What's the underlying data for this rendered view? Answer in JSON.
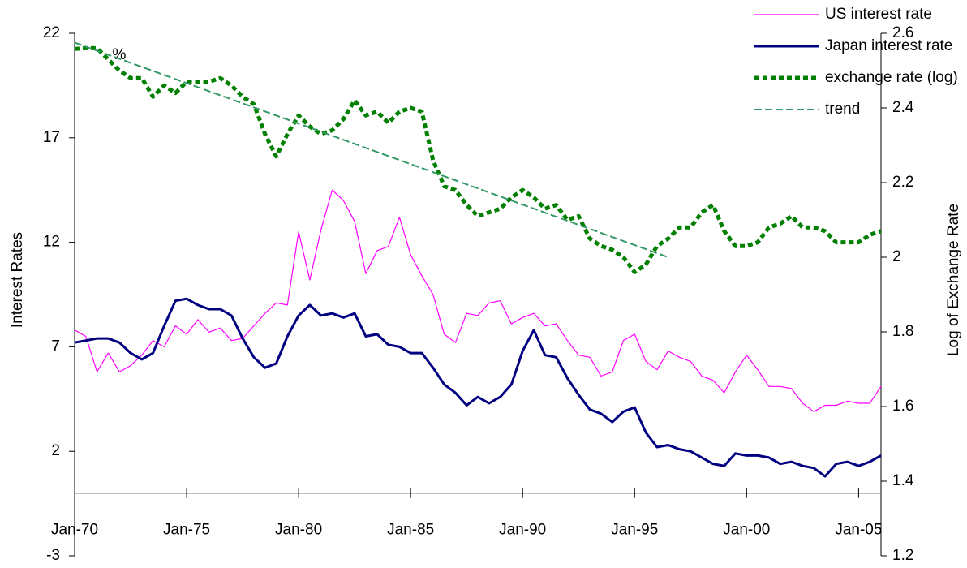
{
  "chart_data": {
    "type": "line",
    "annotation": "%",
    "y_label": "Interest Rates",
    "y2_label": "Log of Exchange Rate",
    "xlim": [
      1970,
      2006
    ],
    "xticks": [
      {
        "value": 1970,
        "label": "Jan-70"
      },
      {
        "value": 1975,
        "label": "Jan-75"
      },
      {
        "value": 1980,
        "label": "Jan-80"
      },
      {
        "value": 1985,
        "label": "Jan-85"
      },
      {
        "value": 1990,
        "label": "Jan-90"
      },
      {
        "value": 1995,
        "label": "Jan-95"
      },
      {
        "value": 2000,
        "label": "Jan-00"
      },
      {
        "value": 2005,
        "label": "Jan-05"
      }
    ],
    "ylim": [
      -3,
      22
    ],
    "yticks": [
      -3,
      2,
      7,
      12,
      17,
      22
    ],
    "y2lim": [
      1.2,
      2.6
    ],
    "y2ticks": [
      1.2,
      1.4,
      1.6,
      1.8,
      2,
      2.2,
      2.4,
      2.6
    ],
    "legend": "top-right",
    "x": [
      1970,
      1970.5,
      1971,
      1971.5,
      1972,
      1972.5,
      1973,
      1973.5,
      1974,
      1974.5,
      1975,
      1975.5,
      1976,
      1976.5,
      1977,
      1977.5,
      1978,
      1978.5,
      1979,
      1979.5,
      1980,
      1980.5,
      1981,
      1981.5,
      1982,
      1982.5,
      1983,
      1983.5,
      1984,
      1984.5,
      1985,
      1985.5,
      1986,
      1986.5,
      1987,
      1987.5,
      1988,
      1988.5,
      1989,
      1989.5,
      1990,
      1990.5,
      1991,
      1991.5,
      1992,
      1992.5,
      1993,
      1993.5,
      1994,
      1994.5,
      1995,
      1995.5,
      1996,
      1996.5,
      1997,
      1997.5,
      1998,
      1998.5,
      1999,
      1999.5,
      2000,
      2000.5,
      2001,
      2001.5,
      2002,
      2002.5,
      2003,
      2003.5,
      2004,
      2004.5,
      2005,
      2005.5,
      2006
    ],
    "series": [
      {
        "name": "US interest rate",
        "color": "#ff00ff",
        "width": 1.2,
        "values": [
          7.8,
          7.5,
          5.8,
          6.7,
          5.8,
          6.1,
          6.6,
          7.3,
          7.0,
          8.0,
          7.6,
          8.3,
          7.7,
          7.9,
          7.3,
          7.4,
          8.0,
          8.6,
          9.1,
          9.0,
          12.5,
          10.2,
          12.6,
          14.5,
          14.0,
          13.0,
          10.5,
          11.6,
          11.8,
          13.2,
          11.4,
          10.4,
          9.5,
          7.6,
          7.2,
          8.6,
          8.5,
          9.1,
          9.2,
          8.1,
          8.4,
          8.6,
          8.0,
          8.1,
          7.3,
          6.6,
          6.5,
          5.6,
          5.8,
          7.3,
          7.6,
          6.3,
          5.9,
          6.8,
          6.5,
          6.3,
          5.6,
          5.4,
          4.8,
          5.8,
          6.6,
          5.9,
          5.1,
          5.1,
          5.0,
          4.3,
          3.9,
          4.2,
          4.2,
          4.4,
          4.3,
          4.3,
          5.1
        ]
      },
      {
        "name": "Japan interest rate",
        "color": "#000080",
        "width": 3,
        "values": [
          7.2,
          7.3,
          7.4,
          7.4,
          7.2,
          6.7,
          6.4,
          6.7,
          8.0,
          9.2,
          9.3,
          9.0,
          8.8,
          8.8,
          8.5,
          7.4,
          6.5,
          6.0,
          6.2,
          7.5,
          8.5,
          9.0,
          8.5,
          8.6,
          8.4,
          8.6,
          7.5,
          7.6,
          7.1,
          7.0,
          6.7,
          6.7,
          6.0,
          5.2,
          4.8,
          4.2,
          4.6,
          4.3,
          4.6,
          5.2,
          6.8,
          7.8,
          6.6,
          6.5,
          5.5,
          4.7,
          4.0,
          3.8,
          3.4,
          3.9,
          4.1,
          2.9,
          2.2,
          2.3,
          2.1,
          2.0,
          1.7,
          1.4,
          1.3,
          1.9,
          1.8,
          1.8,
          1.7,
          1.4,
          1.5,
          1.3,
          1.2,
          0.8,
          1.4,
          1.5,
          1.3,
          1.5,
          1.8
        ]
      },
      {
        "name": "exchange rate (log)",
        "color": "#008000",
        "width": 5,
        "dash": "6 4",
        "axis": "y2",
        "values": [
          2.558,
          2.56,
          2.56,
          2.53,
          2.5,
          2.48,
          2.48,
          2.43,
          2.46,
          2.44,
          2.47,
          2.47,
          2.47,
          2.48,
          2.46,
          2.43,
          2.41,
          2.33,
          2.27,
          2.33,
          2.38,
          2.35,
          2.33,
          2.34,
          2.37,
          2.42,
          2.38,
          2.39,
          2.36,
          2.39,
          2.4,
          2.39,
          2.26,
          2.19,
          2.18,
          2.14,
          2.11,
          2.12,
          2.13,
          2.16,
          2.18,
          2.16,
          2.13,
          2.14,
          2.1,
          2.11,
          2.05,
          2.03,
          2.02,
          2.0,
          1.96,
          1.98,
          2.03,
          2.05,
          2.08,
          2.08,
          2.12,
          2.14,
          2.07,
          2.03,
          2.03,
          2.04,
          2.08,
          2.09,
          2.11,
          2.08,
          2.08,
          2.07,
          2.04,
          2.04,
          2.04,
          2.06,
          2.07
        ]
      },
      {
        "name": "trend",
        "color": "#339966",
        "width": 2,
        "dash": "9 4",
        "axis": "y2",
        "x": [
          1970,
          1996.5
        ],
        "values": [
          2.575,
          2.0
        ]
      }
    ]
  }
}
